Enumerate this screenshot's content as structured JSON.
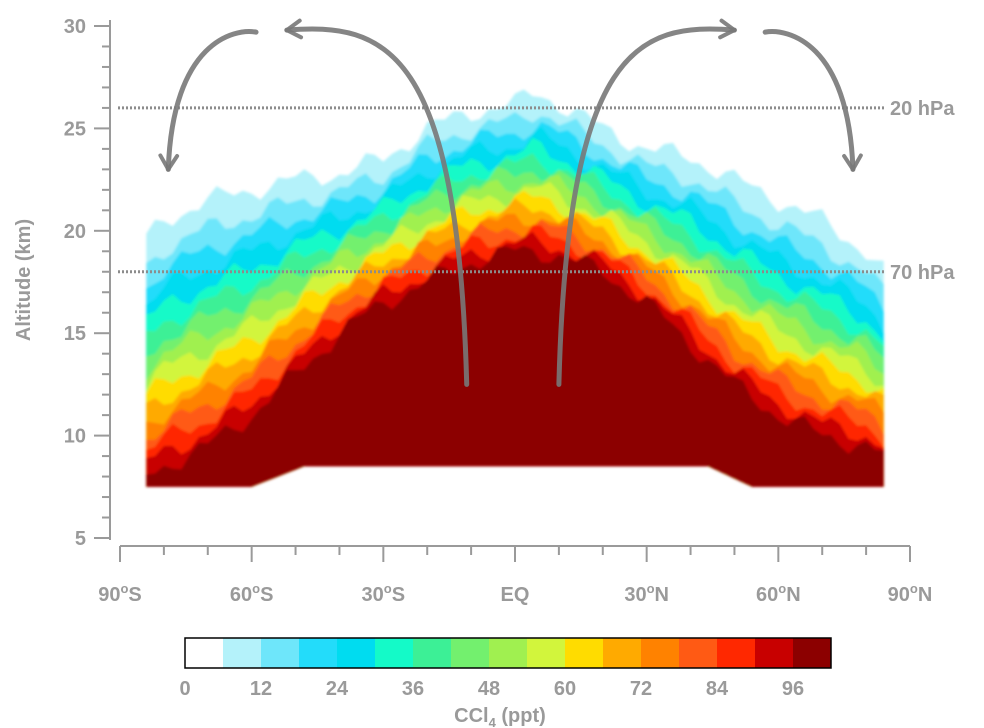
{
  "chart_data": {
    "type": "heatmap",
    "xlabel": "",
    "ylabel": "Altitude (km)",
    "xlim": [
      -90,
      90
    ],
    "ylim": [
      5,
      30
    ],
    "x_ticks": [
      -90,
      -60,
      -30,
      0,
      30,
      60,
      90
    ],
    "x_tick_labels": [
      "90°S",
      "60°S",
      "30°S",
      "EQ",
      "30°N",
      "60°N",
      "90°N"
    ],
    "y_ticks": [
      5,
      10,
      15,
      20,
      25,
      30
    ],
    "y_tick_labels": [
      "5",
      "10",
      "15",
      "20",
      "25",
      "30"
    ],
    "pressure_levels": [
      {
        "label": "20 hPa",
        "altitude_km": 26
      },
      {
        "label": "70 hPa",
        "altitude_km": 18
      }
    ],
    "colorbar": {
      "title": "CCl",
      "title_subscript": "4",
      "title_unit": " (ppt)",
      "min": 0,
      "max": 102,
      "step": 6,
      "tick_values": [
        0,
        12,
        24,
        36,
        48,
        60,
        72,
        84,
        96
      ],
      "tick_labels": [
        "0",
        "12",
        "24",
        "36",
        "48",
        "60",
        "72",
        "84",
        "96"
      ],
      "colors": [
        "#ffffff",
        "#b4f2fa",
        "#6ee6fa",
        "#23dcfa",
        "#00dcf0",
        "#14fac8",
        "#3cf096",
        "#73f06e",
        "#a0f050",
        "#d2f53c",
        "#ffdc00",
        "#ffaa00",
        "#ff8200",
        "#ff5a14",
        "#ff2800",
        "#c80000",
        "#8c0000"
      ]
    },
    "profile_lat": [
      -84,
      -80,
      -70,
      -60,
      -50,
      -40,
      -30,
      -20,
      -10,
      0,
      5,
      10,
      20,
      30,
      40,
      50,
      60,
      70,
      80,
      84
    ],
    "profile_top_km": [
      19.6,
      20.5,
      21.5,
      22.0,
      22.5,
      22.8,
      23.5,
      25.0,
      25.8,
      26.2,
      26.8,
      26.2,
      25.0,
      24.0,
      23.6,
      22.5,
      21.5,
      20.5,
      19.0,
      18.0
    ],
    "profile_core_km": [
      8.0,
      8.5,
      9.5,
      11.0,
      13.0,
      15.0,
      16.5,
      17.5,
      18.5,
      19.0,
      19.0,
      18.8,
      18.0,
      16.5,
      14.5,
      12.5,
      11.0,
      10.0,
      9.5,
      9.0
    ],
    "data_bottom": [
      {
        "lat": -84,
        "km": 7.5
      },
      {
        "lat": -60,
        "km": 7.5
      },
      {
        "lat": -48,
        "km": 8.5
      },
      {
        "lat": 44,
        "km": 8.5
      },
      {
        "lat": 54,
        "km": 7.5
      },
      {
        "lat": 84,
        "km": 7.5
      }
    ],
    "circulation_arrows": [
      {
        "name": "sh-upwelling",
        "from": [
          -11,
          12.5
        ],
        "to": [
          -52,
          29.8
        ]
      },
      {
        "name": "sh-descent",
        "from": [
          -59,
          29.7
        ],
        "to": [
          -79,
          23.0
        ]
      },
      {
        "name": "nh-upwelling",
        "from": [
          10,
          12.5
        ],
        "to": [
          50,
          29.8
        ]
      },
      {
        "name": "nh-descent",
        "from": [
          57,
          29.7
        ],
        "to": [
          77,
          23.0
        ]
      }
    ]
  }
}
